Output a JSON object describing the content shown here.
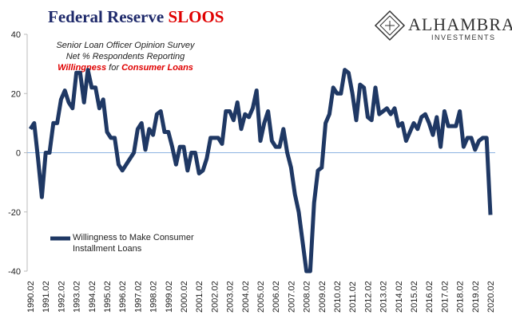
{
  "chart_data": {
    "type": "line",
    "title": "Federal Reserve",
    "title_highlight": "SLOOS",
    "annotation": [
      "Senior Loan Officer Opinion Survey",
      "Net % Respondents Reporting"
    ],
    "annotation_highlight": [
      "Willingness",
      "for",
      "Consumer Loans"
    ],
    "categories": [
      "1990.02",
      null,
      null,
      null,
      "1991.02",
      null,
      null,
      null,
      "1992.02",
      null,
      null,
      null,
      "1993.02",
      null,
      null,
      null,
      "1994.02",
      null,
      null,
      null,
      "1995.02",
      null,
      null,
      null,
      "1996.02",
      null,
      null,
      null,
      "1997.02",
      null,
      null,
      null,
      "1998.02",
      null,
      null,
      null,
      "1999.02",
      null,
      null,
      null,
      "2000.02",
      null,
      null,
      null,
      "2001.02",
      null,
      null,
      null,
      "2002.02",
      null,
      null,
      null,
      "2003.02",
      null,
      null,
      null,
      "2004.02",
      null,
      null,
      null,
      "2005.02",
      null,
      null,
      null,
      "2006.02",
      null,
      null,
      null,
      "2007.02",
      null,
      null,
      null,
      "2008.02",
      null,
      null,
      null,
      "2009.02",
      null,
      null,
      null,
      "2010.02",
      null,
      null,
      null,
      "2011.02",
      null,
      null,
      null,
      "2012.02",
      null,
      null,
      null,
      "2013.02",
      null,
      null,
      null,
      "2014.02",
      null,
      null,
      null,
      "2015.02",
      null,
      null,
      null,
      "2016.02",
      null,
      null,
      null,
      "2017.02",
      null,
      null,
      null,
      "2018.02",
      null,
      null,
      null,
      "2019.02",
      null,
      null,
      null,
      "2020.02"
    ],
    "series": [
      {
        "name": "Willingness to Make Consumer Installment Loans",
        "color": "#1f3864",
        "values": [
          8,
          10,
          -2,
          -15,
          0,
          0,
          10,
          10,
          18,
          21,
          17,
          15,
          27,
          27,
          17,
          28,
          22,
          22,
          15,
          18,
          7,
          5,
          5,
          -4,
          -6,
          -4,
          -2,
          0,
          8,
          10,
          1,
          8,
          6,
          13,
          14,
          7,
          7,
          2,
          -4,
          2,
          2,
          -6,
          0,
          0,
          -7,
          -6,
          -2,
          5,
          5,
          5,
          3,
          14,
          14,
          11,
          17,
          8,
          13,
          12,
          15,
          21,
          4,
          10,
          14,
          4,
          2,
          2,
          8,
          0,
          -5,
          -14,
          -20,
          -30,
          -40,
          -40,
          -17,
          -6,
          -5,
          10,
          13,
          22,
          20,
          20,
          28,
          27,
          20,
          11,
          23,
          22,
          12,
          11,
          22,
          13,
          14,
          15,
          13,
          15,
          9,
          10,
          4,
          7,
          10,
          8,
          12,
          13,
          10,
          6,
          12,
          2,
          14,
          9,
          9,
          9,
          14,
          2,
          5,
          5,
          1,
          4,
          5,
          5,
          -21
        ]
      }
    ],
    "ylim": [
      -40,
      40
    ],
    "yticks": [
      -40,
      -20,
      0,
      20,
      40
    ],
    "zero_line_color": "#8db3e2",
    "title_color": "#1f2a6b",
    "highlight_color": "#e00000"
  },
  "logo": {
    "name": "ALHAMBRA",
    "tagline": "INVESTMENTS"
  }
}
